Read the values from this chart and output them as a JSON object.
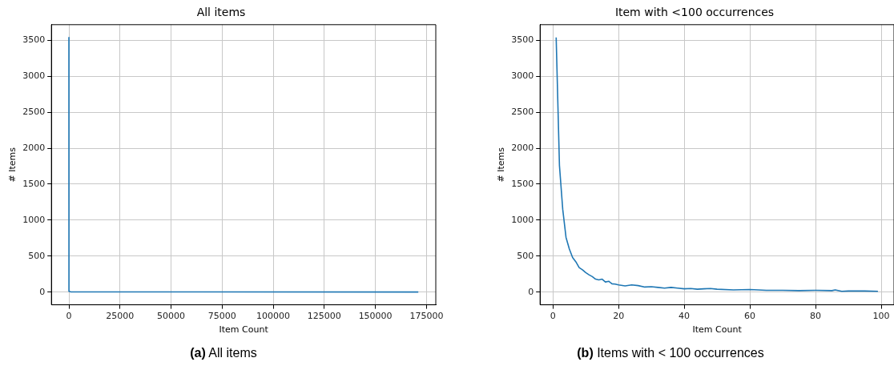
{
  "chart_data": [
    {
      "type": "line",
      "title": "All items",
      "xlabel": "Item Count",
      "ylabel": "# Items",
      "x": [
        1,
        2,
        3,
        5,
        10,
        30,
        100,
        1000,
        171000
      ],
      "series": [
        {
          "color": "#1f77b4",
          "values": [
            3540,
            1760,
            1150,
            600,
            270,
            75,
            10,
            2,
            1
          ]
        }
      ],
      "xlim": [
        -8549,
        179549
      ],
      "ylim": [
        -177,
        3717
      ],
      "xticks": [
        0,
        25000,
        50000,
        75000,
        100000,
        125000,
        150000,
        175000
      ],
      "yticks": [
        0,
        500,
        1000,
        1500,
        2000,
        2500,
        3000,
        3500
      ],
      "grid": true,
      "marker": "none",
      "annotations": [
        "(a) All items"
      ]
    },
    {
      "type": "line",
      "title": "Item with <100 occurrences",
      "xlabel": "Item Count",
      "ylabel": "# Items",
      "x": [
        1,
        2,
        3,
        4,
        5,
        6,
        7,
        8,
        9,
        10,
        11,
        12,
        13,
        14,
        15,
        16,
        17,
        18,
        19,
        20,
        22,
        24,
        26,
        28,
        30,
        32,
        34,
        36,
        38,
        40,
        42,
        44,
        46,
        48,
        50,
        55,
        60,
        65,
        70,
        75,
        80,
        85,
        86,
        88,
        90,
        95,
        99
      ],
      "series": [
        {
          "color": "#1f77b4",
          "values": [
            3540,
            1760,
            1150,
            760,
            600,
            480,
            420,
            340,
            310,
            270,
            240,
            215,
            180,
            170,
            180,
            140,
            150,
            115,
            110,
            100,
            85,
            100,
            90,
            70,
            75,
            65,
            55,
            65,
            55,
            45,
            50,
            40,
            45,
            50,
            40,
            30,
            35,
            25,
            25,
            20,
            25,
            20,
            30,
            10,
            15,
            15,
            10
          ]
        }
      ],
      "xlim": [
        -3.9,
        103.9
      ],
      "ylim": [
        -177,
        3717
      ],
      "xticks": [
        0,
        20,
        40,
        60,
        80,
        100
      ],
      "yticks": [
        0,
        500,
        1000,
        1500,
        2000,
        2500,
        3000,
        3500
      ],
      "grid": true,
      "marker": "none",
      "annotations": [
        "(b) Items with < 100 occurrences"
      ]
    }
  ]
}
